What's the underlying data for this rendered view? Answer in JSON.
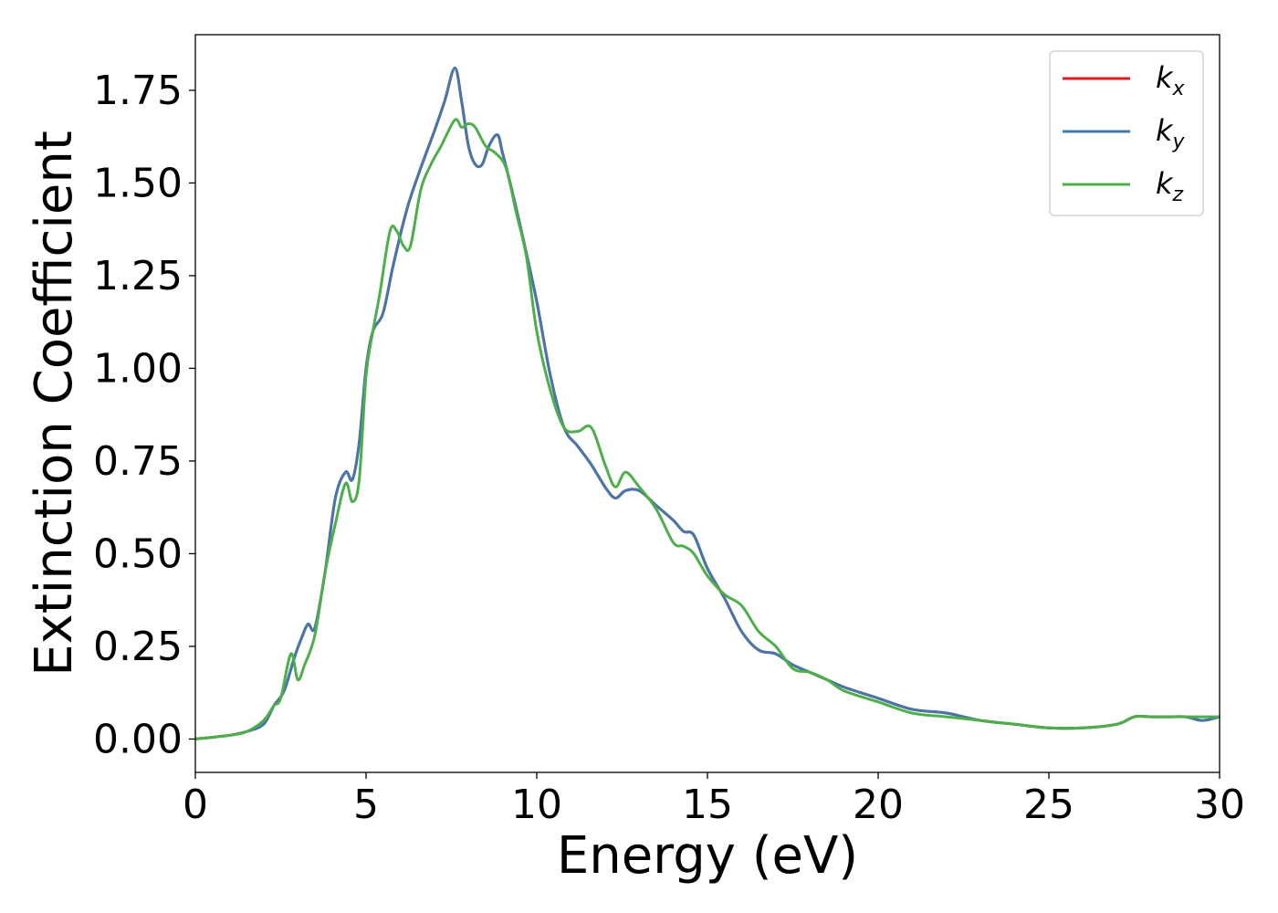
{
  "chart_data": {
    "type": "line",
    "xlabel": "Energy (eV)",
    "ylabel": "Extinction Coefficient",
    "xlim": [
      0,
      30
    ],
    "ylim": [
      -0.09,
      1.9
    ],
    "xticks": [
      0,
      5,
      10,
      15,
      20,
      25,
      30
    ],
    "xtick_labels": [
      "0",
      "5",
      "10",
      "15",
      "20",
      "25",
      "30"
    ],
    "yticks": [
      0.0,
      0.25,
      0.5,
      0.75,
      1.0,
      1.25,
      1.5,
      1.75
    ],
    "ytick_labels": [
      "0.00",
      "0.25",
      "0.50",
      "0.75",
      "1.00",
      "1.25",
      "1.50",
      "1.75"
    ],
    "grid": false,
    "legend_position": "top-right",
    "series": [
      {
        "name": "k_x",
        "legend_base": "k",
        "legend_sub": "x",
        "color": "#e41a1c",
        "x": [
          0,
          1,
          1.5,
          2,
          2.3,
          2.6,
          2.9,
          3.1,
          3.3,
          3.5,
          3.8,
          4.1,
          4.4,
          4.6,
          4.8,
          5.0,
          5.2,
          5.5,
          5.8,
          6.2,
          6.6,
          7.0,
          7.3,
          7.6,
          7.8,
          8.0,
          8.2,
          8.4,
          8.6,
          8.85,
          9.0,
          9.3,
          9.6,
          10.0,
          10.4,
          10.8,
          11.2,
          11.6,
          12.0,
          12.3,
          12.6,
          13.0,
          13.5,
          14.0,
          14.3,
          14.6,
          15.0,
          15.5,
          16.0,
          16.5,
          17.0,
          17.5,
          18.0,
          18.5,
          19.0,
          20.0,
          21.0,
          22.0,
          23.0,
          24.0,
          25.0,
          26.0,
          27.0,
          27.5,
          28.0,
          28.5,
          29.0,
          29.5,
          30.0
        ],
        "y": [
          0.0,
          0.01,
          0.02,
          0.04,
          0.09,
          0.13,
          0.22,
          0.27,
          0.31,
          0.3,
          0.45,
          0.65,
          0.72,
          0.7,
          0.8,
          1.0,
          1.1,
          1.15,
          1.28,
          1.43,
          1.54,
          1.64,
          1.72,
          1.81,
          1.72,
          1.6,
          1.55,
          1.55,
          1.6,
          1.63,
          1.58,
          1.47,
          1.35,
          1.18,
          0.98,
          0.84,
          0.79,
          0.74,
          0.68,
          0.65,
          0.67,
          0.67,
          0.63,
          0.59,
          0.56,
          0.55,
          0.46,
          0.38,
          0.29,
          0.24,
          0.23,
          0.2,
          0.18,
          0.16,
          0.14,
          0.11,
          0.08,
          0.07,
          0.05,
          0.04,
          0.03,
          0.03,
          0.04,
          0.06,
          0.06,
          0.06,
          0.06,
          0.05,
          0.06
        ]
      },
      {
        "name": "k_y",
        "legend_base": "k",
        "legend_sub": "y",
        "color": "#4477aa",
        "x": [
          0,
          1,
          1.5,
          2,
          2.3,
          2.6,
          2.9,
          3.1,
          3.3,
          3.5,
          3.8,
          4.1,
          4.4,
          4.6,
          4.8,
          5.0,
          5.2,
          5.5,
          5.8,
          6.2,
          6.6,
          7.0,
          7.3,
          7.6,
          7.8,
          8.0,
          8.2,
          8.4,
          8.6,
          8.85,
          9.0,
          9.3,
          9.6,
          10.0,
          10.4,
          10.8,
          11.2,
          11.6,
          12.0,
          12.3,
          12.6,
          13.0,
          13.5,
          14.0,
          14.3,
          14.6,
          15.0,
          15.5,
          16.0,
          16.5,
          17.0,
          17.5,
          18.0,
          18.5,
          19.0,
          20.0,
          21.0,
          22.0,
          23.0,
          24.0,
          25.0,
          26.0,
          27.0,
          27.5,
          28.0,
          28.5,
          29.0,
          29.5,
          30.0
        ],
        "y": [
          0.0,
          0.01,
          0.02,
          0.04,
          0.09,
          0.13,
          0.22,
          0.27,
          0.31,
          0.3,
          0.45,
          0.65,
          0.72,
          0.7,
          0.8,
          1.0,
          1.1,
          1.15,
          1.28,
          1.43,
          1.54,
          1.64,
          1.72,
          1.81,
          1.72,
          1.6,
          1.55,
          1.55,
          1.6,
          1.63,
          1.58,
          1.47,
          1.35,
          1.18,
          0.98,
          0.84,
          0.79,
          0.74,
          0.68,
          0.65,
          0.67,
          0.67,
          0.63,
          0.59,
          0.56,
          0.55,
          0.46,
          0.38,
          0.29,
          0.24,
          0.23,
          0.2,
          0.18,
          0.16,
          0.14,
          0.11,
          0.08,
          0.07,
          0.05,
          0.04,
          0.03,
          0.03,
          0.04,
          0.06,
          0.06,
          0.06,
          0.06,
          0.05,
          0.06
        ]
      },
      {
        "name": "k_z",
        "legend_base": "k",
        "legend_sub": "z",
        "color": "#4daf4a",
        "x": [
          0,
          1,
          1.5,
          2,
          2.3,
          2.5,
          2.8,
          3.0,
          3.2,
          3.5,
          3.8,
          4.1,
          4.4,
          4.6,
          4.8,
          5.0,
          5.2,
          5.4,
          5.7,
          5.9,
          6.1,
          6.3,
          6.6,
          6.9,
          7.2,
          7.6,
          7.8,
          8.0,
          8.2,
          8.5,
          8.8,
          9.1,
          9.4,
          9.7,
          10.0,
          10.4,
          10.8,
          11.2,
          11.6,
          12.0,
          12.3,
          12.6,
          13.0,
          13.5,
          14.0,
          14.3,
          14.6,
          15.0,
          15.5,
          16.0,
          16.5,
          17.0,
          17.5,
          18.0,
          18.5,
          19.0,
          20.0,
          21.0,
          22.0,
          23.0,
          24.0,
          25.0,
          26.0,
          27.0,
          27.5,
          28.0,
          28.5,
          29.0,
          29.5,
          30.0
        ],
        "y": [
          0.0,
          0.01,
          0.02,
          0.05,
          0.09,
          0.11,
          0.23,
          0.16,
          0.2,
          0.28,
          0.45,
          0.58,
          0.69,
          0.64,
          0.7,
          0.98,
          1.1,
          1.2,
          1.37,
          1.37,
          1.33,
          1.33,
          1.48,
          1.55,
          1.6,
          1.67,
          1.65,
          1.66,
          1.65,
          1.6,
          1.58,
          1.54,
          1.42,
          1.3,
          1.1,
          0.94,
          0.84,
          0.83,
          0.84,
          0.74,
          0.68,
          0.72,
          0.68,
          0.62,
          0.53,
          0.52,
          0.5,
          0.44,
          0.39,
          0.36,
          0.29,
          0.25,
          0.19,
          0.18,
          0.16,
          0.13,
          0.1,
          0.07,
          0.06,
          0.05,
          0.04,
          0.03,
          0.03,
          0.04,
          0.06,
          0.06,
          0.06,
          0.06,
          0.06,
          0.06
        ]
      }
    ]
  }
}
